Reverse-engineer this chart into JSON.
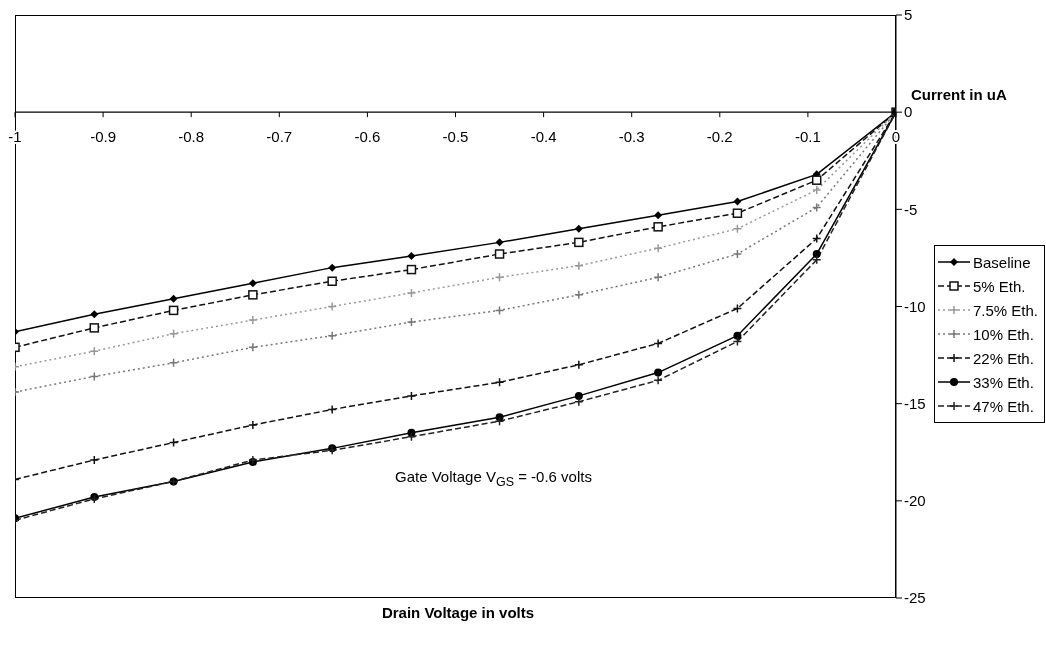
{
  "chart_data": {
    "type": "line",
    "xlabel": "Drain Voltage in volts",
    "ylabel": "Current in uA",
    "annotations": [
      "Gate Voltage V$_{GS}$ = -0.6 volts"
    ],
    "x": [
      -1,
      -0.91,
      -0.82,
      -0.73,
      -0.64,
      -0.55,
      -0.45,
      -0.36,
      -0.27,
      -0.18,
      -0.09,
      0
    ],
    "xlim": [
      -1,
      0
    ],
    "xticks": [
      -1,
      -0.9,
      -0.8,
      -0.7,
      -0.6,
      -0.5,
      -0.4,
      -0.3,
      -0.2,
      -0.1,
      0
    ],
    "ylim": [
      -25,
      5
    ],
    "yticks": [
      5,
      0,
      -5,
      -10,
      -15,
      -20,
      -25
    ],
    "legend": "right",
    "series": [
      {
        "name": "Baseline",
        "color": "#000000",
        "marker": "diamond",
        "line_style": "solid",
        "values": [
          -11.3,
          -10.4,
          -9.6,
          -8.8,
          -8.0,
          -7.4,
          -6.7,
          -6.0,
          -5.3,
          -4.6,
          -3.2,
          0
        ]
      },
      {
        "name": "5% Eth.",
        "color": "#111111",
        "marker": "square",
        "line_style": "dashed",
        "values": [
          -12.1,
          -11.1,
          -10.2,
          -9.4,
          -8.7,
          -8.1,
          -7.3,
          -6.7,
          -5.9,
          -5.2,
          -3.5,
          0
        ]
      },
      {
        "name": "7.5% Eth.",
        "color": "#999999",
        "marker": "cross",
        "line_style": "dotted",
        "values": [
          -13.1,
          -12.3,
          -11.4,
          -10.7,
          -10.0,
          -9.3,
          -8.5,
          -7.9,
          -7.0,
          -6.0,
          -4.0,
          0
        ]
      },
      {
        "name": "10% Eth.",
        "color": "#777777",
        "marker": "cross",
        "line_style": "dotted",
        "values": [
          -14.4,
          -13.6,
          -12.9,
          -12.1,
          -11.5,
          -10.8,
          -10.2,
          -9.4,
          -8.5,
          -7.3,
          -4.9,
          0
        ]
      },
      {
        "name": "22% Eth.",
        "color": "#111111",
        "marker": "cross",
        "line_style": "dashed",
        "values": [
          -18.9,
          -17.9,
          -17.0,
          -16.1,
          -15.3,
          -14.6,
          -13.9,
          -13.0,
          -11.9,
          -10.1,
          -6.5,
          0
        ]
      },
      {
        "name": "33% Eth.",
        "color": "#000000",
        "marker": "circle",
        "line_style": "solid",
        "values": [
          -20.9,
          -19.8,
          -19.0,
          -18.0,
          -17.3,
          -16.5,
          -15.7,
          -14.6,
          -13.4,
          -11.5,
          -7.3,
          0
        ]
      },
      {
        "name": "47% Eth.",
        "color": "#222222",
        "marker": "cross",
        "line_style": "dashed",
        "values": [
          -21.0,
          -19.9,
          -19.0,
          -17.9,
          -17.4,
          -16.7,
          -15.9,
          -14.9,
          -13.8,
          -11.8,
          -7.6,
          0
        ]
      }
    ]
  }
}
